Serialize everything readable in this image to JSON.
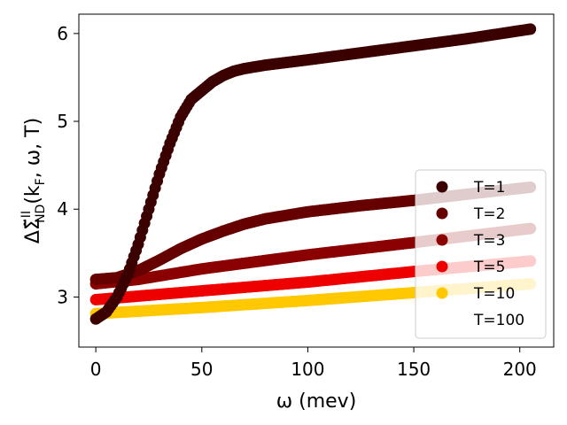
{
  "chart_data": {
    "type": "scatter",
    "title": "",
    "xlabel": "ω (mev)",
    "ylabel": "ΔΣ̃ᴵᴵ_ND(k_F, ω, T)",
    "ylabel_parts": {
      "delta": "Δ",
      "sigma": "Σ̃",
      "sup": "II",
      "sub": "ND",
      "args_open": "(k",
      "args_sub": "F",
      "args_rest": ", ω, T)"
    },
    "xlim": [
      -8,
      216
    ],
    "ylim": [
      2.43,
      6.22
    ],
    "xticks": [
      0,
      50,
      100,
      150,
      200
    ],
    "yticks": [
      3,
      4,
      5,
      6
    ],
    "xtick_labels": [
      "0",
      "50",
      "100",
      "150",
      "200"
    ],
    "ytick_labels": [
      "3",
      "4",
      "5",
      "6"
    ],
    "grid": false,
    "legend_position": "lower right",
    "x_range": [
      0,
      205
    ],
    "series": [
      {
        "name": "T=1",
        "color": "#3b0000",
        "x": [
          0,
          5,
          10,
          15,
          20,
          25,
          30,
          35,
          40,
          45,
          50,
          55,
          60,
          65,
          70,
          80,
          100,
          125,
          150,
          175,
          205
        ],
        "y": [
          2.75,
          2.83,
          3.0,
          3.25,
          3.6,
          4.0,
          4.4,
          4.75,
          5.05,
          5.25,
          5.35,
          5.45,
          5.52,
          5.57,
          5.6,
          5.64,
          5.7,
          5.78,
          5.86,
          5.94,
          6.05
        ]
      },
      {
        "name": "T=2",
        "color": "#660000",
        "x": [
          0,
          10,
          20,
          30,
          40,
          50,
          60,
          70,
          80,
          100,
          125,
          150,
          175,
          205
        ],
        "y": [
          3.2,
          3.22,
          3.3,
          3.42,
          3.55,
          3.66,
          3.75,
          3.83,
          3.89,
          3.97,
          4.04,
          4.1,
          4.17,
          4.25
        ]
      },
      {
        "name": "T=3",
        "color": "#8b0000",
        "x": [
          0,
          20,
          50,
          100,
          150,
          205
        ],
        "y": [
          3.15,
          3.2,
          3.32,
          3.48,
          3.62,
          3.78
        ]
      },
      {
        "name": "T=5",
        "color": "#ee0000",
        "x": [
          0,
          50,
          100,
          150,
          205
        ],
        "y": [
          2.97,
          3.07,
          3.17,
          3.29,
          3.41
        ]
      },
      {
        "name": "T=10",
        "color": "#ffc800",
        "x": [
          0,
          50,
          100,
          150,
          205
        ],
        "y": [
          2.81,
          2.88,
          2.96,
          3.05,
          3.15
        ]
      },
      {
        "name": "T=100",
        "color": "#ffffff",
        "x": [
          0,
          50,
          100,
          150,
          205
        ],
        "y": [
          2.81,
          2.88,
          2.96,
          3.05,
          3.15
        ]
      }
    ]
  }
}
